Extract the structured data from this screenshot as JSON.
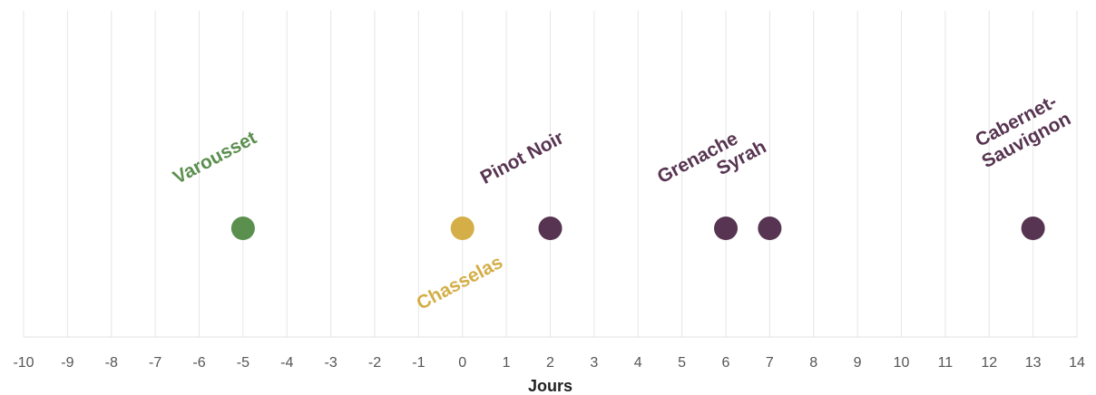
{
  "chart_data": {
    "type": "scatter",
    "title": "",
    "xlabel": "Jours",
    "ylabel": "",
    "xlim": [
      -10,
      14
    ],
    "x_ticks": [
      "-10",
      "-9",
      "-8",
      "-7",
      "-6",
      "-5",
      "-4",
      "-3",
      "-2",
      "-1",
      "0",
      "1",
      "2",
      "3",
      "4",
      "5",
      "6",
      "7",
      "8",
      "9",
      "10",
      "11",
      "12",
      "13",
      "14"
    ],
    "grid": "vertical",
    "legend": "none",
    "points": [
      {
        "label": "Varousset",
        "x": -5,
        "color": "#5b8f4e",
        "label_side": "above"
      },
      {
        "label": "Chasselas",
        "x": 0,
        "color": "#d4ae47",
        "label_side": "below"
      },
      {
        "label": "Pinot Noir",
        "x": 2,
        "color": "#573451",
        "label_side": "above"
      },
      {
        "label": "Grenache",
        "x": 6,
        "color": "#573451",
        "label_side": "above"
      },
      {
        "label": "Syrah",
        "x": 7,
        "color": "#573451",
        "label_side": "above"
      },
      {
        "label": "Cabernet-\nSauvignon",
        "x": 13,
        "color": "#573451",
        "label_side": "above"
      }
    ]
  }
}
